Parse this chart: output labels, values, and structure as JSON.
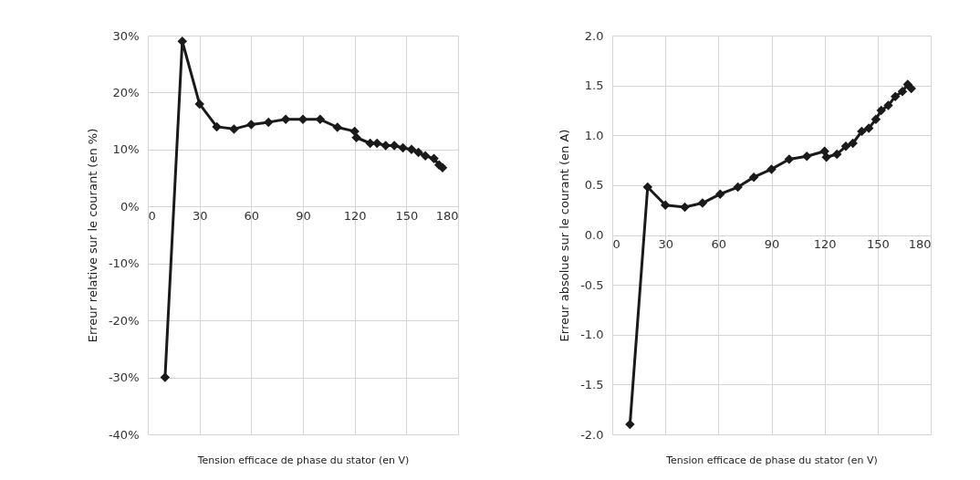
{
  "chart_data": [
    {
      "type": "line",
      "xlabel": "Tension efficace de phase du stator (en V)",
      "ylabel": "Erreur relative sur le courant (en %)",
      "xlim": [
        0,
        180
      ],
      "xticks": [
        0,
        30,
        60,
        90,
        120,
        150,
        180
      ],
      "ylim": [
        -40,
        30
      ],
      "yticks": [
        {
          "value": -40,
          "label": "-40%"
        },
        {
          "value": -30,
          "label": "-30%"
        },
        {
          "value": -20,
          "label": "-20%"
        },
        {
          "value": -10,
          "label": "-10%"
        },
        {
          "value": 0,
          "label": "0%"
        },
        {
          "value": 10,
          "label": "10%"
        },
        {
          "value": 20,
          "label": "20%"
        },
        {
          "value": 30,
          "label": "30%"
        }
      ],
      "grid": true,
      "marker": "diamond",
      "line_style": "solid",
      "series": [
        {
          "color": "#1a1a1a",
          "x": [
            10,
            20,
            30,
            40,
            50,
            60,
            70,
            80,
            90,
            100,
            110,
            120,
            121,
            129,
            133,
            138,
            143,
            148,
            153,
            157,
            161,
            166,
            169,
            171
          ],
          "values": [
            -30,
            29,
            18,
            14,
            13.6,
            14.4,
            14.8,
            15.3,
            15.3,
            15.3,
            13.9,
            13.2,
            12.1,
            11.1,
            11.1,
            10.7,
            10.7,
            10.3,
            10,
            9.5,
            8.9,
            8.4,
            7.3,
            6.8
          ]
        }
      ]
    },
    {
      "type": "line",
      "xlabel": "Tension efficace de phase du stator (en V)",
      "ylabel": "Erreur absolue sur le courant (en A)",
      "xlim": [
        0,
        180
      ],
      "xticks": [
        0,
        30,
        60,
        90,
        120,
        150,
        180
      ],
      "ylim": [
        -2,
        2
      ],
      "yticks": [
        {
          "value": -2,
          "label": "-2.0"
        },
        {
          "value": -1.5,
          "label": "-1.5"
        },
        {
          "value": -1,
          "label": "-1.0"
        },
        {
          "value": -0.5,
          "label": "-0.5"
        },
        {
          "value": 0,
          "label": "0.0"
        },
        {
          "value": 0.5,
          "label": "0.5"
        },
        {
          "value": 1,
          "label": "1.0"
        },
        {
          "value": 1.5,
          "label": "1.5"
        },
        {
          "value": 2,
          "label": "2.0"
        }
      ],
      "grid": true,
      "marker": "diamond",
      "line_style": "solid",
      "series": [
        {
          "color": "#1a1a1a",
          "x": [
            10,
            20,
            30,
            41,
            51,
            61,
            71,
            80,
            90,
            100,
            110,
            120,
            121,
            127,
            132,
            136,
            141,
            145,
            149,
            152,
            156,
            160,
            164,
            167,
            169
          ],
          "values": [
            -1.9,
            0.48,
            0.3,
            0.28,
            0.32,
            0.41,
            0.48,
            0.58,
            0.66,
            0.76,
            0.79,
            0.84,
            0.78,
            0.81,
            0.89,
            0.92,
            1.04,
            1.07,
            1.16,
            1.25,
            1.3,
            1.39,
            1.44,
            1.51,
            1.47
          ]
        }
      ]
    }
  ]
}
